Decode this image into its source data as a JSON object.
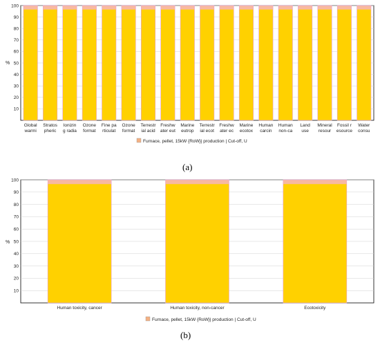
{
  "colors": {
    "bar_fill": "#FFD100",
    "bar_top_band": "#F8B9A0",
    "bar_edge": "#E8A0D8",
    "grid": "#D0D0D0",
    "axis": "#000000",
    "legend_swatch": "#F4B183"
  },
  "chart_data": [
    {
      "type": "bar",
      "panel_label": "(a)",
      "ylabel": "%",
      "ylim": [
        0,
        100
      ],
      "yticks": [
        10,
        20,
        30,
        40,
        50,
        60,
        70,
        80,
        90,
        100
      ],
      "grid": true,
      "legend_position": "bottom",
      "categories": [
        [
          "Global",
          "warmi"
        ],
        [
          "Stratos",
          "pheric"
        ],
        [
          "Ionizin",
          "g radia"
        ],
        [
          "Ozone",
          "format"
        ],
        [
          "Fine pa",
          "rticulat"
        ],
        [
          "Ozone",
          "format"
        ],
        [
          "Terrestr",
          "ial acid"
        ],
        [
          "Freshw",
          "ater eut"
        ],
        [
          "Marine",
          "eutrop"
        ],
        [
          "Terrestr",
          "ial ecot"
        ],
        [
          "Freshw",
          "ater ec"
        ],
        [
          "Marine",
          "ecotox"
        ],
        [
          "Human",
          "carcin"
        ],
        [
          "Human",
          "non-ca"
        ],
        [
          "Land",
          "use"
        ],
        [
          "Mineral",
          "resour"
        ],
        [
          "Fossil r",
          "esource"
        ],
        [
          "Water",
          "consu"
        ]
      ],
      "series": [
        {
          "name": "Furnace, pellet, 15kW {RoW}| production | Cut-off, U",
          "values": [
            100,
            100,
            100,
            100,
            100,
            100,
            100,
            100,
            100,
            100,
            100,
            100,
            100,
            100,
            100,
            100,
            100,
            100
          ]
        }
      ]
    },
    {
      "type": "bar",
      "panel_label": "(b)",
      "ylabel": "%",
      "ylim": [
        0,
        100
      ],
      "yticks": [
        10,
        20,
        30,
        40,
        50,
        60,
        70,
        80,
        90,
        100
      ],
      "grid": true,
      "legend_position": "bottom",
      "categories": [
        [
          "Human toxicity, cancer"
        ],
        [
          "Human toxicity, non-cancer"
        ],
        [
          "Ecotoxicity"
        ]
      ],
      "series": [
        {
          "name": "Furnace, pellet, 15kW {RoW}| production | Cut-off, U",
          "values": [
            100,
            100,
            100
          ]
        }
      ]
    }
  ]
}
